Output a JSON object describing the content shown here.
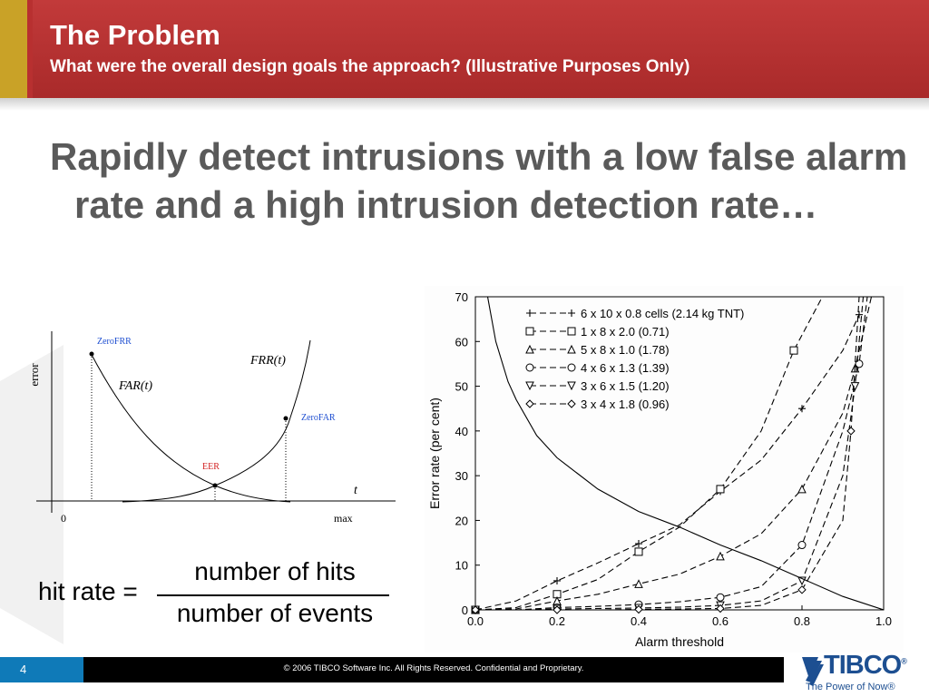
{
  "header": {
    "title": "The Problem",
    "subtitle": "What were the overall design goals the approach?   (Illustrative Purposes Only)"
  },
  "body": {
    "bullet": "Rapidly detect intrusions with a low false alarm rate and a high intrusion detection rate…"
  },
  "left_figure": {
    "y_label": "error",
    "x_label_t": "t",
    "x_zero": "0",
    "x_max": "max",
    "curve_far": "FAR(t)",
    "curve_frr": "FRR(t)",
    "point_zerofrr": "ZeroFRR",
    "point_zerofar": "ZeroFAR",
    "point_eer": "EER",
    "label_color": "#1f4fd1",
    "eer_color": "#d21f1f"
  },
  "formula": {
    "lhs": "hit rate =",
    "numerator": "number of hits",
    "denominator": "number of events"
  },
  "chart_data": {
    "type": "line",
    "xlabel": "Alarm threshold",
    "ylabel": "Error rate (per cent)",
    "xlim": [
      0.0,
      1.0
    ],
    "ylim": [
      0,
      70
    ],
    "x_ticks": [
      "0.0",
      "0.2",
      "0.4",
      "0.6",
      "0.8",
      "1.0"
    ],
    "y_ticks": [
      "0",
      "10",
      "20",
      "30",
      "40",
      "50",
      "60",
      "70"
    ],
    "legend_position": "top-right",
    "series": [
      {
        "name": "6 x 10 x 0.8 cells (2.14 kg TNT)",
        "marker": "plus",
        "x": [
          0.0,
          0.1,
          0.2,
          0.3,
          0.4,
          0.5,
          0.6,
          0.7,
          0.8,
          0.9,
          0.94
        ],
        "y": [
          0,
          2,
          6.5,
          10.5,
          14.8,
          19,
          26.5,
          33.5,
          45,
          58,
          66
        ]
      },
      {
        "name": "1 x 8 x 2.0 (0.71)",
        "marker": "square",
        "x": [
          0.0,
          0.1,
          0.2,
          0.3,
          0.4,
          0.5,
          0.6,
          0.7,
          0.78,
          0.85
        ],
        "y": [
          0,
          0.5,
          3.5,
          6.8,
          13,
          18.5,
          27,
          40,
          58,
          70
        ]
      },
      {
        "name": "5 x 8 x 1.0 (1.78)",
        "marker": "triangle-up",
        "x": [
          0.0,
          0.1,
          0.2,
          0.3,
          0.4,
          0.5,
          0.6,
          0.7,
          0.8,
          0.9,
          0.93,
          0.97
        ],
        "y": [
          0,
          0.2,
          2,
          3.5,
          5.8,
          8,
          12,
          17,
          27,
          44,
          54,
          70
        ]
      },
      {
        "name": "4 x 6 x 1.3 (1.39)",
        "marker": "circle",
        "x": [
          0.0,
          0.1,
          0.2,
          0.3,
          0.4,
          0.5,
          0.6,
          0.7,
          0.8,
          0.9,
          0.94,
          0.96
        ],
        "y": [
          0,
          0,
          0.5,
          0.8,
          1.2,
          1.8,
          2.8,
          5.2,
          14.5,
          40,
          55,
          70
        ]
      },
      {
        "name": "3 x 6 x 1.5 (1.20)",
        "marker": "triangle-down",
        "x": [
          0.0,
          0.1,
          0.2,
          0.3,
          0.4,
          0.5,
          0.6,
          0.7,
          0.8,
          0.9,
          0.93,
          0.95
        ],
        "y": [
          0,
          0,
          0.2,
          0.3,
          0.4,
          0.6,
          1,
          2,
          6.5,
          30,
          50,
          70
        ]
      },
      {
        "name": "3 x 4 x 1.8 (0.96)",
        "marker": "diamond",
        "x": [
          0.0,
          0.1,
          0.2,
          0.3,
          0.4,
          0.5,
          0.6,
          0.7,
          0.8,
          0.9,
          0.92,
          0.94
        ],
        "y": [
          0,
          0,
          0,
          0,
          0.1,
          0.2,
          0.3,
          1,
          4.5,
          20,
          40,
          70
        ]
      },
      {
        "name": "",
        "marker": "none",
        "x": [
          0.03,
          0.05,
          0.08,
          0.1,
          0.15,
          0.2,
          0.3,
          0.4,
          0.5,
          0.6,
          0.7,
          0.8,
          0.9,
          1.0
        ],
        "y": [
          70,
          60,
          51,
          47,
          39,
          34,
          27,
          22,
          18.5,
          14.5,
          11,
          7,
          3,
          0
        ]
      }
    ]
  },
  "footer": {
    "page_number": "4",
    "copyright": "© 2006 TIBCO Software Inc. All Rights Reserved. Confidential and Proprietary.",
    "brand": "TIBCO",
    "brand_mark": "®",
    "tagline": "The Power of Now®",
    "accent_color": "#1d4f91"
  }
}
